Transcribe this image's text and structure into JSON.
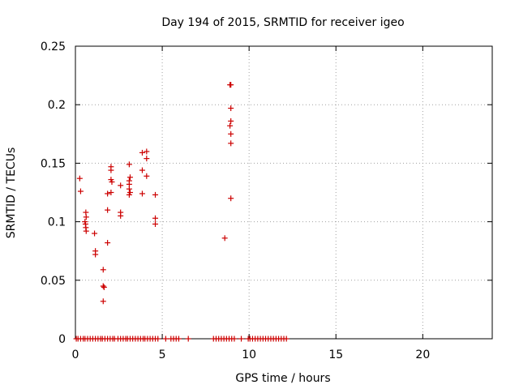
{
  "chart_data": {
    "type": "scatter",
    "title": "Day 194 of 2015, SRMTID for receiver igeo",
    "xlabel": "GPS time / hours",
    "ylabel": "SRMTID / TECUs",
    "xlim": [
      0,
      24
    ],
    "ylim": [
      0,
      0.25
    ],
    "xticks": [
      0,
      5,
      10,
      15,
      20
    ],
    "xtick_labels": [
      "0",
      "5",
      "10",
      "15",
      "20"
    ],
    "yticks": [
      0,
      0.05,
      0.1,
      0.15,
      0.2,
      0.25
    ],
    "ytick_labels": [
      "0",
      "0.05",
      "0.1",
      "0.15",
      "0.2",
      "0.25"
    ],
    "grid": true,
    "marker": "+",
    "marker_color": "#cc0000",
    "series": [
      {
        "name": "SRMTID",
        "points": [
          [
            0.25,
            0.137
          ],
          [
            0.3,
            0.126
          ],
          [
            0.55,
            0.1
          ],
          [
            0.6,
            0.108
          ],
          [
            0.62,
            0.104
          ],
          [
            0.58,
            0.098
          ],
          [
            0.6,
            0.095
          ],
          [
            0.62,
            0.092
          ],
          [
            1.1,
            0.09
          ],
          [
            1.15,
            0.075
          ],
          [
            1.15,
            0.072
          ],
          [
            1.6,
            0.059
          ],
          [
            1.6,
            0.045
          ],
          [
            1.65,
            0.044
          ],
          [
            1.6,
            0.032
          ],
          [
            1.85,
            0.124
          ],
          [
            1.85,
            0.11
          ],
          [
            1.85,
            0.082
          ],
          [
            2.05,
            0.147
          ],
          [
            2.05,
            0.144
          ],
          [
            2.05,
            0.136
          ],
          [
            2.1,
            0.134
          ],
          [
            2.05,
            0.125
          ],
          [
            2.6,
            0.131
          ],
          [
            2.6,
            0.108
          ],
          [
            2.6,
            0.105
          ],
          [
            3.1,
            0.149
          ],
          [
            3.15,
            0.138
          ],
          [
            3.1,
            0.135
          ],
          [
            3.1,
            0.132
          ],
          [
            3.1,
            0.128
          ],
          [
            3.15,
            0.125
          ],
          [
            3.1,
            0.123
          ],
          [
            3.85,
            0.159
          ],
          [
            3.85,
            0.144
          ],
          [
            3.85,
            0.124
          ],
          [
            4.1,
            0.16
          ],
          [
            4.1,
            0.154
          ],
          [
            4.1,
            0.139
          ],
          [
            4.6,
            0.123
          ],
          [
            4.6,
            0.103
          ],
          [
            4.6,
            0.098
          ],
          [
            8.6,
            0.086
          ],
          [
            8.9,
            0.217
          ],
          [
            8.95,
            0.217
          ],
          [
            8.95,
            0.197
          ],
          [
            8.95,
            0.186
          ],
          [
            8.9,
            0.182
          ],
          [
            8.95,
            0.175
          ],
          [
            8.95,
            0.167
          ],
          [
            8.95,
            0.12
          ]
        ],
        "zero_x": [
          0.05,
          0.15,
          0.3,
          0.45,
          0.55,
          0.7,
          0.85,
          1.0,
          1.15,
          1.3,
          1.45,
          1.55,
          1.7,
          1.85,
          2.0,
          2.15,
          2.25,
          2.45,
          2.6,
          2.75,
          2.9,
          3.0,
          3.15,
          3.3,
          3.45,
          3.6,
          3.75,
          3.9,
          4.0,
          4.15,
          4.3,
          4.45,
          4.6,
          4.75,
          5.2,
          5.5,
          5.65,
          5.8,
          5.95,
          6.5,
          7.95,
          8.1,
          8.25,
          8.4,
          8.55,
          8.7,
          8.85,
          9.0,
          9.15,
          9.55,
          9.95,
          10.05,
          10.2,
          10.35,
          10.5,
          10.65,
          10.8,
          10.95,
          11.1,
          11.25,
          11.4,
          11.55,
          11.7,
          11.85,
          12.0,
          12.15
        ]
      }
    ]
  }
}
